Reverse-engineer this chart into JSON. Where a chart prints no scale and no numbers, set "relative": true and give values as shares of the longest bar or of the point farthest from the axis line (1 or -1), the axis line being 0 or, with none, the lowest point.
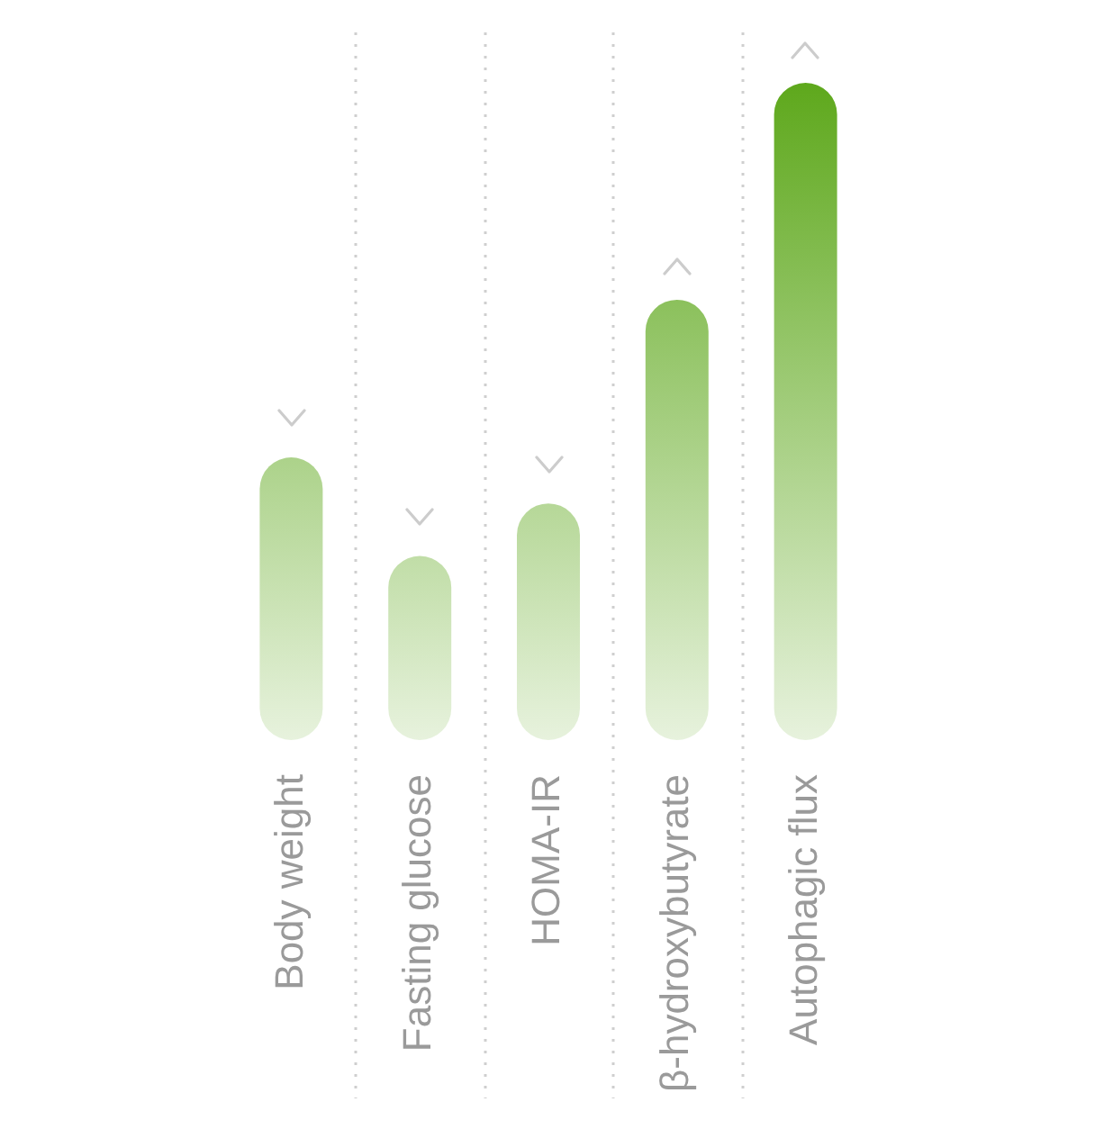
{
  "chart_data": {
    "type": "bar",
    "relative": true,
    "categories": [
      "Body weight",
      "Fasting glucose",
      "HOMA-IR",
      "β-hydroxybutyrate",
      "Autophagic flux"
    ],
    "values": [
      0.43,
      0.28,
      0.36,
      0.67,
      1
    ],
    "color": "#5ea81c",
    "grid": "x"
  }
}
